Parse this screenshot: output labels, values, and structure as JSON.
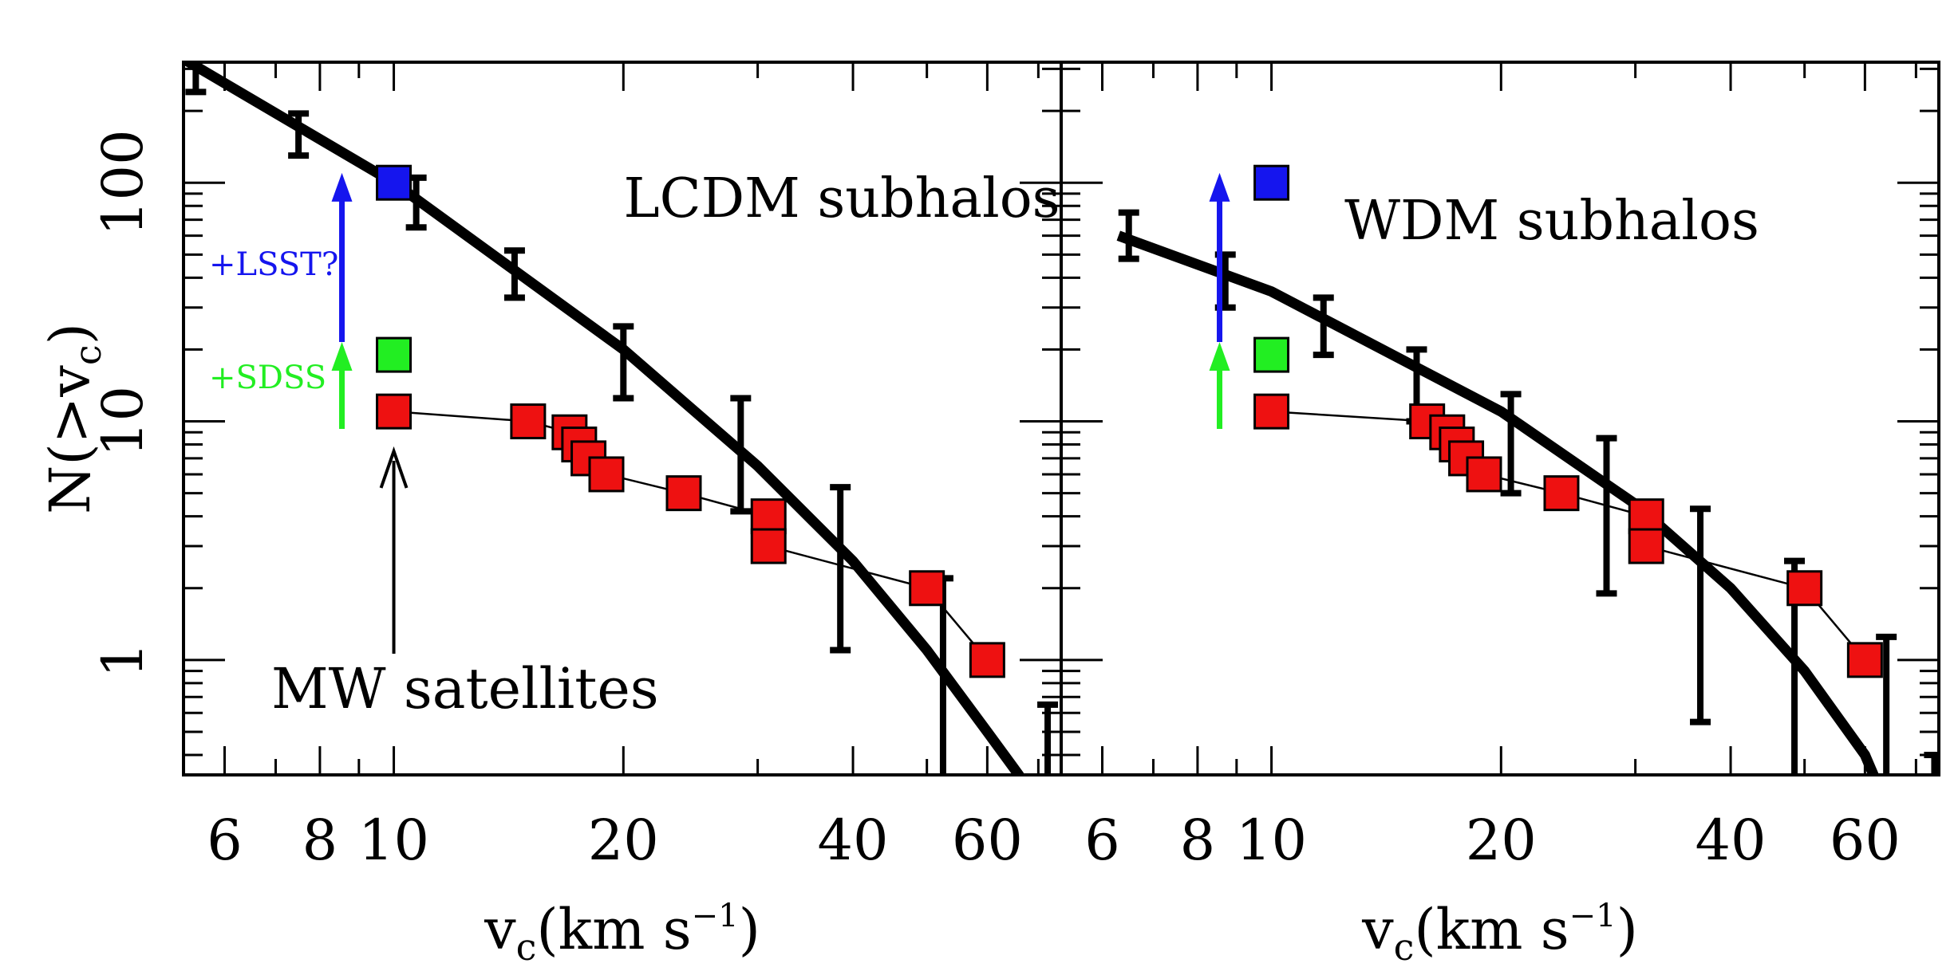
{
  "chart_data": [
    {
      "type": "line",
      "title": "LCDM subhalos",
      "xlabel": "v_c(km s^-1)",
      "xlabel_main": "v",
      "xlabel_sub": "c",
      "xlabel_rest": "(km s",
      "xlabel_sup": "−1",
      "xlabel_close": ")",
      "ylabel": "N(>v_c)",
      "ylabel_main": "N(>v",
      "ylabel_sub": "c",
      "ylabel_close": ")",
      "xscale": "log",
      "yscale": "log",
      "xlim": [
        5.3,
        75
      ],
      "ylim": [
        0.33,
        320
      ],
      "xticks": [
        6,
        8,
        10,
        20,
        40,
        60
      ],
      "xticklabels": [
        "6",
        "8",
        "10",
        "20",
        "40",
        "60"
      ],
      "yticks": [
        1,
        10,
        100
      ],
      "yticklabels": [
        "1",
        "10",
        "100"
      ],
      "annotations": {
        "lsst": "+LSST?",
        "sdss": "+SDSS",
        "mw": "MW satellites"
      },
      "series": [
        {
          "kind": "model_curve",
          "x": [
            5.3,
            10,
            20,
            30,
            40,
            50,
            60,
            66,
            75
          ],
          "y": [
            330,
            100,
            20,
            6.5,
            2.6,
            1.1,
            0.5,
            0.33,
            0.15
          ]
        },
        {
          "kind": "errorbars",
          "points": [
            {
              "x": 5.5,
              "y": 290,
              "lo": 240,
              "hi": 330
            },
            {
              "x": 7.5,
              "y": 160,
              "lo": 130,
              "hi": 195
            },
            {
              "x": 10.7,
              "y": 85,
              "lo": 65,
              "hi": 105
            },
            {
              "x": 14.4,
              "y": 42,
              "lo": 33,
              "hi": 52
            },
            {
              "x": 20.0,
              "y": 19,
              "lo": 12.5,
              "hi": 25
            },
            {
              "x": 28.5,
              "y": 7,
              "lo": 4.2,
              "hi": 12.5
            },
            {
              "x": 38.5,
              "y": 2.6,
              "lo": 1.1,
              "hi": 5.3
            },
            {
              "x": 52.5,
              "y": 0.9,
              "lo": 0.2,
              "hi": 2.2
            },
            {
              "x": 72,
              "y": 0.5,
              "lo": 0.2,
              "hi": 0.65
            }
          ]
        },
        {
          "kind": "mw_satellites",
          "color": "#ee1111",
          "x": [
            10,
            15,
            17,
            17.5,
            18,
            19,
            24,
            31,
            31,
            50,
            60
          ],
          "y": [
            11,
            10,
            9,
            8,
            7,
            6,
            5,
            4,
            3,
            2,
            1
          ]
        },
        {
          "kind": "sdss_projection",
          "color": "#22ee22",
          "x": [
            10
          ],
          "y": [
            19
          ]
        },
        {
          "kind": "lsst_projection",
          "color": "#1515ee",
          "x": [
            10
          ],
          "y": [
            100
          ]
        }
      ]
    },
    {
      "type": "line",
      "title": "WDM subhalos",
      "xlabel": "v_c(km s^-1)",
      "xlabel_main": "v",
      "xlabel_sub": "c",
      "xlabel_rest": "(km s",
      "xlabel_sup": "−1",
      "xlabel_close": ")",
      "xscale": "log",
      "yscale": "log",
      "xlim": [
        5.3,
        75
      ],
      "ylim": [
        0.33,
        320
      ],
      "xticks": [
        6,
        8,
        10,
        20,
        40,
        60
      ],
      "xticklabels": [
        "6",
        "8",
        "10",
        "20",
        "40",
        "60"
      ],
      "yticks": [
        1,
        10,
        100
      ],
      "series": [
        {
          "kind": "model_curve",
          "x": [
            6.3,
            10,
            20,
            30,
            40,
            50,
            60,
            65
          ],
          "y": [
            60,
            35,
            11,
            4.5,
            2.0,
            0.9,
            0.4,
            0.22
          ]
        },
        {
          "kind": "errorbars",
          "points": [
            {
              "x": 6.5,
              "y": 60,
              "lo": 48,
              "hi": 75
            },
            {
              "x": 8.7,
              "y": 40,
              "lo": 30,
              "hi": 50
            },
            {
              "x": 11.7,
              "y": 25,
              "lo": 19,
              "hi": 33
            },
            {
              "x": 15.5,
              "y": 15,
              "lo": 10,
              "hi": 20
            },
            {
              "x": 20.6,
              "y": 8,
              "lo": 5,
              "hi": 13
            },
            {
              "x": 27.5,
              "y": 4.5,
              "lo": 1.9,
              "hi": 8.5
            },
            {
              "x": 36.5,
              "y": 2.2,
              "lo": 0.55,
              "hi": 4.3
            },
            {
              "x": 48.5,
              "y": 1.2,
              "lo": 0.2,
              "hi": 2.6
            },
            {
              "x": 64,
              "y": 0.7,
              "lo": 0.2,
              "hi": 1.25
            },
            {
              "x": 74,
              "y": 0.35,
              "lo": 0.2,
              "hi": 0.4
            }
          ]
        },
        {
          "kind": "mw_satellites",
          "color": "#ee1111",
          "x": [
            10,
            16,
            17,
            17.5,
            18,
            19,
            24,
            31,
            31,
            50,
            60
          ],
          "y": [
            11,
            10,
            9,
            8,
            7,
            6,
            5,
            4,
            3,
            2,
            1
          ]
        },
        {
          "kind": "sdss_projection",
          "color": "#22ee22",
          "x": [
            10
          ],
          "y": [
            19
          ]
        },
        {
          "kind": "lsst_projection",
          "color": "#1515ee",
          "x": [
            10
          ],
          "y": [
            100
          ]
        }
      ]
    }
  ]
}
